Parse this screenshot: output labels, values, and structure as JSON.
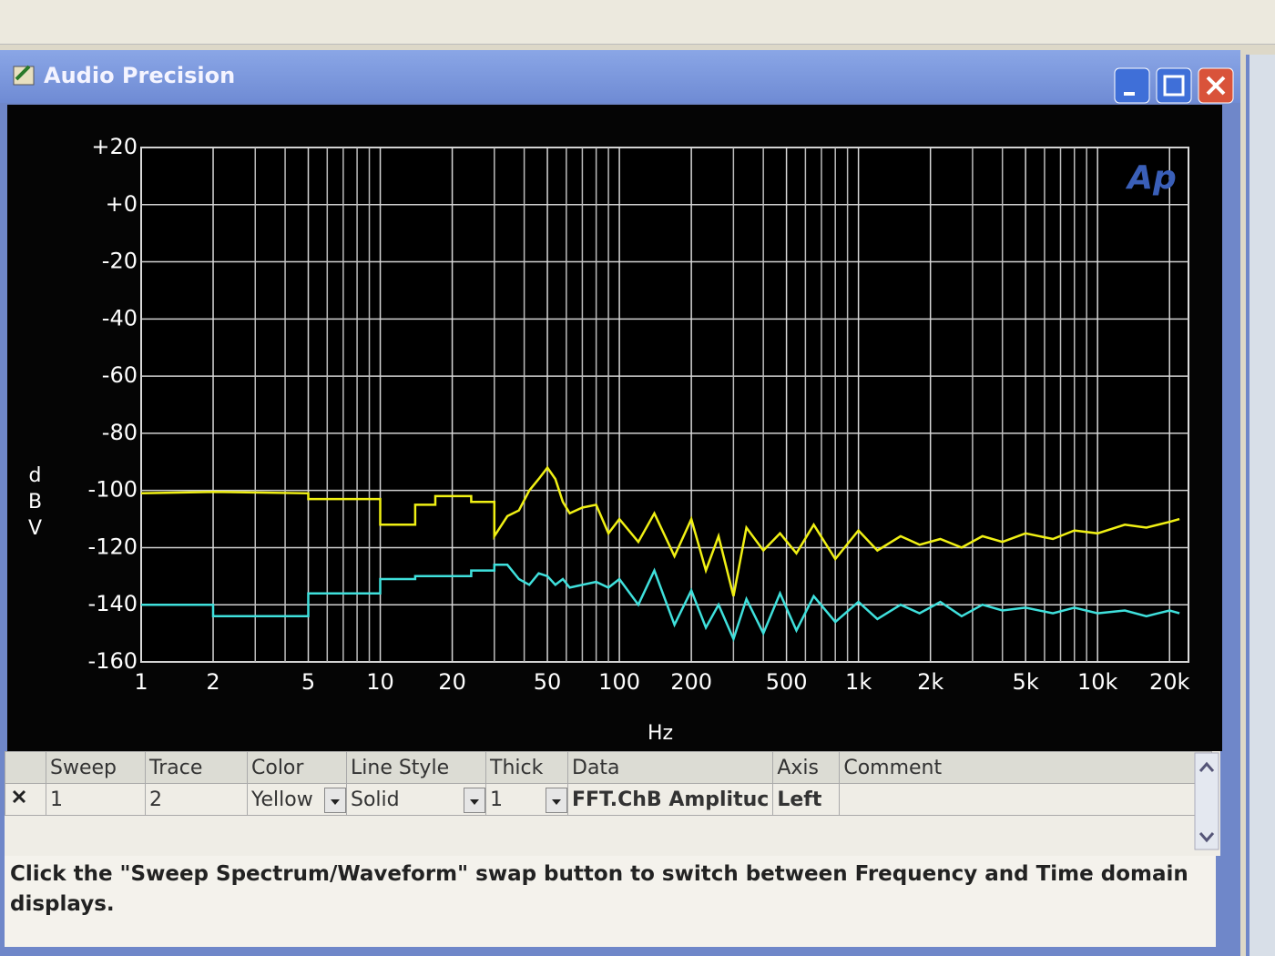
{
  "window": {
    "title": "Audio Precision"
  },
  "chart_data": {
    "type": "line",
    "logo": "Ap",
    "y_label": "dBV",
    "x_label": "Hz",
    "x_log": true,
    "grid": true,
    "xlim": [
      1,
      24000
    ],
    "ylim": [
      -160,
      20
    ],
    "xticks": [
      1,
      2,
      5,
      10,
      20,
      50,
      100,
      200,
      500,
      {
        "value": 1000,
        "label": "1k"
      },
      {
        "value": 2000,
        "label": "2k"
      },
      {
        "value": 5000,
        "label": "5k"
      },
      {
        "value": 10000,
        "label": "10k"
      },
      {
        "value": 20000,
        "label": "20k"
      }
    ],
    "x_minor_grid": [
      3,
      4,
      6,
      7,
      8,
      9,
      30,
      40,
      60,
      70,
      80,
      90,
      300,
      400,
      600,
      700,
      800,
      900,
      3000,
      4000,
      6000,
      7000,
      8000,
      9000
    ],
    "yticks": [
      {
        "value": 20,
        "label": "+20"
      },
      {
        "value": 0,
        "label": "+0"
      },
      -20,
      -40,
      -60,
      -80,
      -100,
      -120,
      -140,
      -160
    ],
    "x": [
      1,
      2,
      2,
      5,
      5,
      10,
      10,
      14,
      14,
      17,
      17,
      24,
      24,
      30,
      30,
      34,
      38,
      42,
      46,
      50,
      54,
      58,
      62,
      70,
      80,
      90,
      100,
      120,
      140,
      170,
      200,
      230,
      260,
      300,
      340,
      400,
      470,
      550,
      650,
      800,
      1000,
      1200,
      1500,
      1800,
      2200,
      2700,
      3300,
      4000,
      5000,
      6500,
      8000,
      10000,
      13000,
      16000,
      20000,
      22000
    ],
    "series": [
      {
        "color": "#f0f014",
        "values": [
          -101,
          -100.5,
          -100.5,
          -101,
          -103,
          -103,
          -112,
          -112,
          -105,
          -105,
          -102,
          -102,
          -104,
          -104,
          -116,
          -109,
          -107,
          -100,
          -96,
          -92,
          -96,
          -104,
          -108,
          -106,
          -105,
          -115,
          -110,
          -118,
          -108,
          -123,
          -110,
          -128,
          -116,
          -137,
          -113,
          -121,
          -115,
          -122,
          -112,
          -124,
          -114,
          -121,
          -116,
          -119,
          -117,
          -120,
          -116,
          -118,
          -115,
          -117,
          -114,
          -115,
          -112,
          -113,
          -111,
          -110
        ]
      },
      {
        "color": "#3fe0dc",
        "values": [
          -140,
          -140,
          -144,
          -144,
          -136,
          -136,
          -131,
          -131,
          -130,
          -130,
          -130,
          -130,
          -128,
          -128,
          -126,
          -126,
          -131,
          -133,
          -129,
          -130,
          -133,
          -131,
          -134,
          -133,
          -132,
          -134,
          -131,
          -140,
          -128,
          -147,
          -135,
          -148,
          -140,
          -152,
          -138,
          -150,
          -136,
          -149,
          -137,
          -146,
          -139,
          -145,
          -140,
          -143,
          -139,
          -144,
          -140,
          -142,
          -141,
          -143,
          -141,
          -143,
          -142,
          -144,
          -142,
          -143
        ]
      }
    ]
  },
  "table": {
    "headers": [
      "Sweep",
      "Trace",
      "Color",
      "Line Style",
      "Thick",
      "Data",
      "Axis",
      "Comment"
    ],
    "rows": [
      [
        "1",
        "2",
        "Yellow",
        "Solid",
        "1",
        "FFT.ChB Amplituc",
        "Left",
        null
      ]
    ]
  },
  "status": "Click the \"Sweep Spectrum/Waveform\" swap button to switch between Frequency and Time domain displays."
}
